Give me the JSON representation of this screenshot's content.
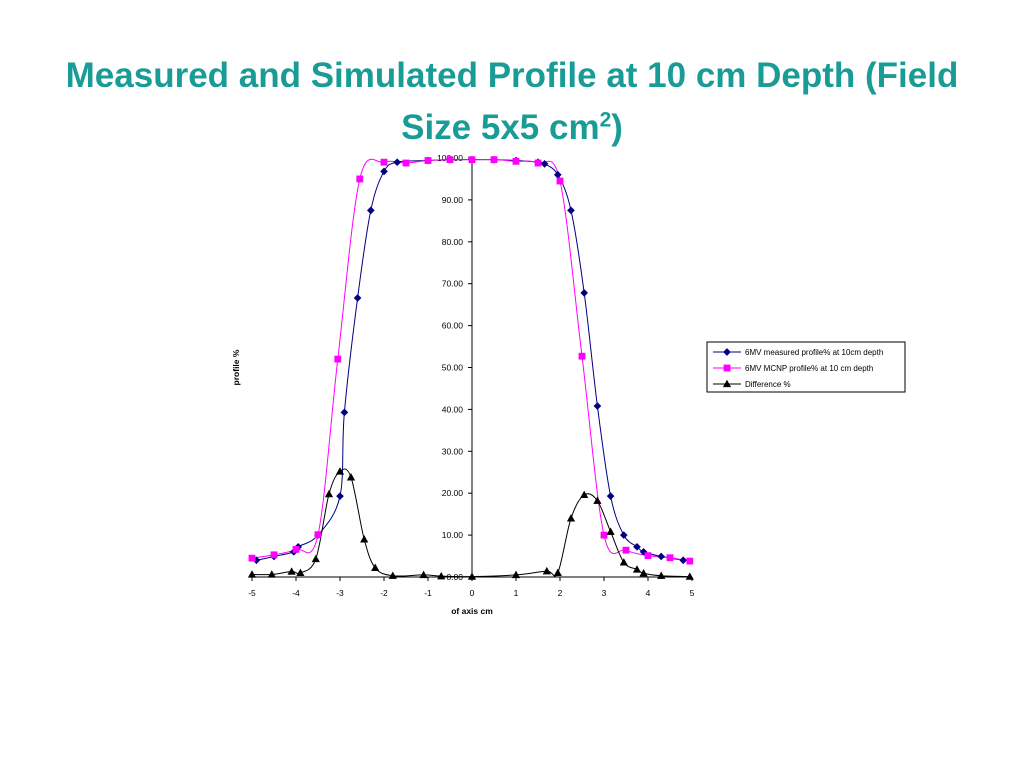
{
  "slide": {
    "title_main": "Measured and Simulated Profile at 10 cm Depth (Field Size 5x5 cm",
    "title_sup": "2",
    "title_end": ")"
  },
  "chart_data": {
    "type": "scatter",
    "xlabel": "of axis cm",
    "ylabel": "profile %",
    "xlim": [
      -5,
      5
    ],
    "ylim": [
      0,
      100
    ],
    "x_ticks": [
      "-5",
      "-4",
      "-3",
      "-2",
      "-1",
      "0",
      "1",
      "2",
      "3",
      "4",
      "5"
    ],
    "y_ticks": [
      "0.00",
      "10.00",
      "20.00",
      "30.00",
      "40.00",
      "50.00",
      "60.00",
      "70.00",
      "80.00",
      "90.00",
      "100.00"
    ],
    "grid": false,
    "legend_position": "right",
    "series": [
      {
        "name": "6MV measured profile% at 10cm depth",
        "color": "#000080",
        "marker": "diamond",
        "points": [
          [
            -4.9,
            4.0
          ],
          [
            -4.5,
            4.9
          ],
          [
            -4.05,
            6.0
          ],
          [
            -3.95,
            7.2
          ],
          [
            -3.5,
            10.0
          ],
          [
            -3.0,
            19.3
          ],
          [
            -2.9,
            39.3
          ],
          [
            -2.6,
            66.6
          ],
          [
            -2.3,
            87.5
          ],
          [
            -2.0,
            96.8
          ],
          [
            -1.7,
            99.0
          ],
          [
            -1.0,
            99.4
          ],
          [
            -0.5,
            99.6
          ],
          [
            0.0,
            99.6
          ],
          [
            0.5,
            99.6
          ],
          [
            1.0,
            99.4
          ],
          [
            1.5,
            99.0
          ],
          [
            1.65,
            98.6
          ],
          [
            1.95,
            96.0
          ],
          [
            2.25,
            87.5
          ],
          [
            2.55,
            67.8
          ],
          [
            2.85,
            40.8
          ],
          [
            3.15,
            19.3
          ],
          [
            3.45,
            10.0
          ],
          [
            3.75,
            7.2
          ],
          [
            3.9,
            6.0
          ],
          [
            4.3,
            4.9
          ],
          [
            4.8,
            4.0
          ]
        ]
      },
      {
        "name": "6MV MCNP profile% at 10 cm depth",
        "color": "#ff00ff",
        "marker": "square",
        "points": [
          [
            -5.0,
            4.5
          ],
          [
            -4.5,
            5.3
          ],
          [
            -4.0,
            6.6
          ],
          [
            -3.5,
            10.1
          ],
          [
            -3.05,
            52.0
          ],
          [
            -2.55,
            95.0
          ],
          [
            -2.0,
            99.0
          ],
          [
            -1.5,
            98.8
          ],
          [
            -1.0,
            99.4
          ],
          [
            -0.5,
            99.6
          ],
          [
            0.0,
            99.6
          ],
          [
            0.5,
            99.6
          ],
          [
            1.0,
            99.2
          ],
          [
            1.5,
            98.8
          ],
          [
            2.0,
            94.5
          ],
          [
            2.5,
            52.7
          ],
          [
            3.0,
            10.0
          ],
          [
            3.5,
            6.4
          ],
          [
            4.0,
            5.1
          ],
          [
            4.5,
            4.6
          ],
          [
            4.95,
            3.8
          ]
        ]
      },
      {
        "name": "Difference %",
        "color": "#000000",
        "marker": "triangle",
        "points": [
          [
            -5.0,
            0.6
          ],
          [
            -4.55,
            0.6
          ],
          [
            -4.1,
            1.3
          ],
          [
            -3.9,
            1.0
          ],
          [
            -3.55,
            4.3
          ],
          [
            -3.25,
            19.8
          ],
          [
            -3.0,
            25.2
          ],
          [
            -2.75,
            23.8
          ],
          [
            -2.45,
            9.0
          ],
          [
            -2.2,
            2.2
          ],
          [
            -1.8,
            0.3
          ],
          [
            -1.1,
            0.5
          ],
          [
            -0.7,
            0.2
          ],
          [
            0.0,
            0.1
          ],
          [
            1.0,
            0.5
          ],
          [
            1.7,
            1.4
          ],
          [
            1.95,
            1.0
          ],
          [
            2.25,
            14.0
          ],
          [
            2.55,
            19.6
          ],
          [
            2.85,
            18.2
          ],
          [
            3.15,
            10.8
          ],
          [
            3.45,
            3.5
          ],
          [
            3.75,
            1.8
          ],
          [
            3.9,
            0.9
          ],
          [
            4.3,
            0.3
          ],
          [
            4.95,
            0.1
          ]
        ]
      }
    ]
  }
}
